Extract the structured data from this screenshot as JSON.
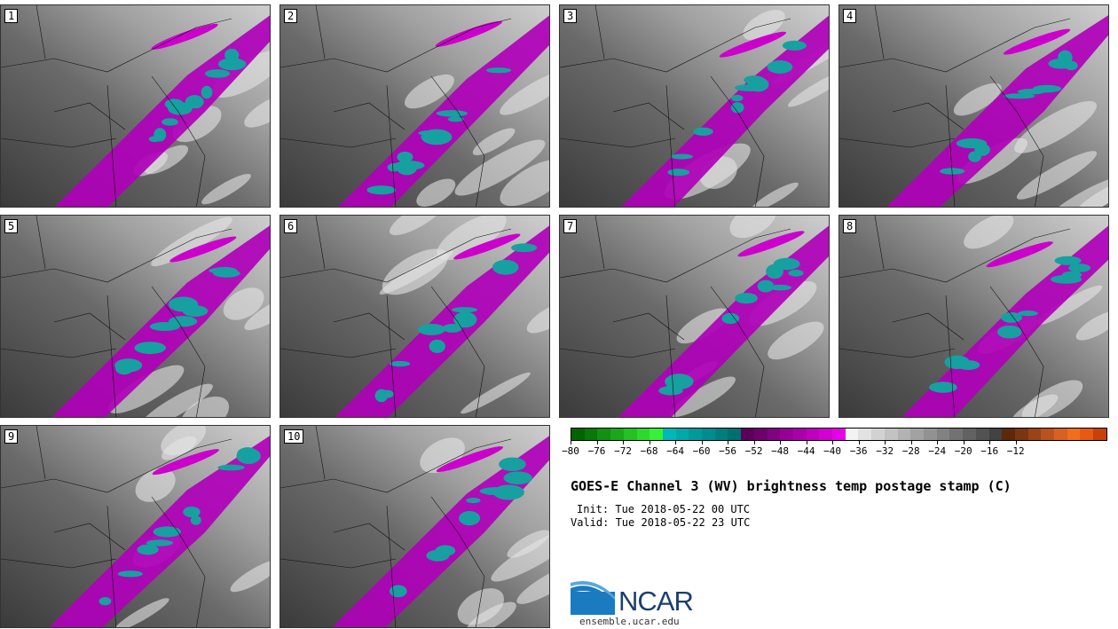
{
  "panels": [
    {
      "label": "1"
    },
    {
      "label": "2"
    },
    {
      "label": "3"
    },
    {
      "label": "4"
    },
    {
      "label": "5"
    },
    {
      "label": "6"
    },
    {
      "label": "7"
    },
    {
      "label": "8"
    },
    {
      "label": "9"
    },
    {
      "label": "10"
    }
  ],
  "colorbar": {
    "colors": [
      "#006400",
      "#087808",
      "#119011",
      "#1aa81a",
      "#24c024",
      "#2ed82e",
      "#38f038",
      "#00b8b8",
      "#00a8a8",
      "#009a9a",
      "#008c8c",
      "#007e7e",
      "#006f6f",
      "#5a005a",
      "#6e006e",
      "#820082",
      "#960096",
      "#aa00aa",
      "#be00be",
      "#d200d2",
      "#e600e6",
      "#f2f2f2",
      "#e2e2e2",
      "#d2d2d2",
      "#c2c2c2",
      "#b2b2b2",
      "#a2a2a2",
      "#929292",
      "#828282",
      "#727272",
      "#626262",
      "#525252",
      "#424242",
      "#5a2a0a",
      "#7a3610",
      "#9a4416",
      "#ba521c",
      "#d86020",
      "#f06e1e",
      "#e85a14",
      "#c8400a"
    ],
    "ticks": [
      "−80",
      "−76",
      "−72",
      "−68",
      "−64",
      "−60",
      "−56",
      "−52",
      "−48",
      "−44",
      "−40",
      "−36",
      "−32",
      "−28",
      "−24",
      "−20",
      "−16",
      "−12"
    ]
  },
  "title": "GOES-E Channel 3 (WV) brightness temp postage stamp (C)",
  "init": "Init: Tue 2018-05-22 00 UTC",
  "valid": "Valid: Tue 2018-05-22 23 UTC",
  "logo": {
    "text": "NCAR",
    "site": "ensemble.ucar.edu"
  }
}
